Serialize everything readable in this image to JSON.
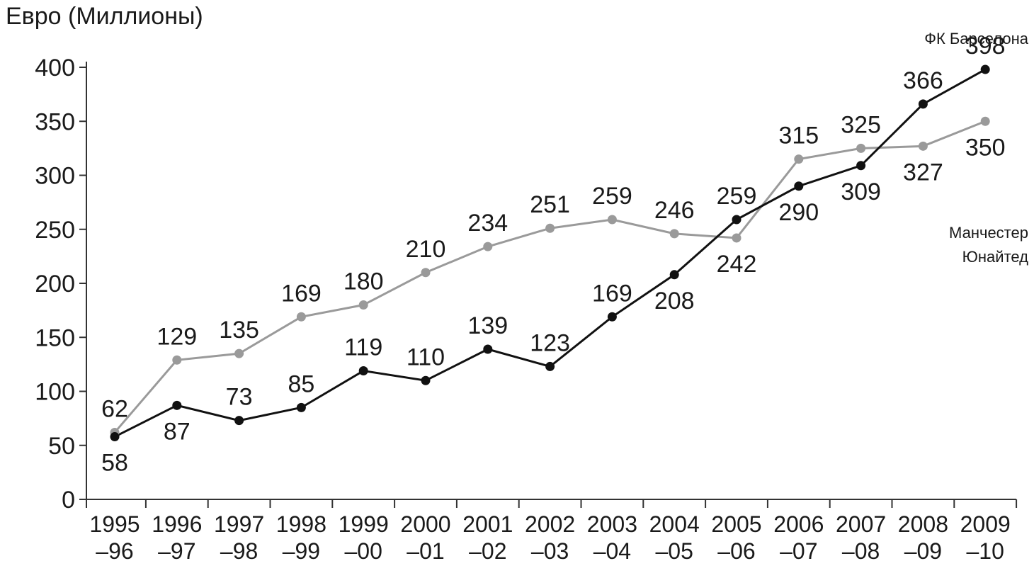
{
  "chart_data": {
    "type": "line",
    "ylabel": "Евро (Миллионы)",
    "xlabel": "",
    "ylim": [
      0,
      400
    ],
    "yticks": [
      "0",
      "50",
      "100",
      "150",
      "200",
      "250",
      "300",
      "350",
      "400"
    ],
    "categories": [
      [
        "1995",
        "–96"
      ],
      [
        "1996",
        "–97"
      ],
      [
        "1997",
        "–98"
      ],
      [
        "1998",
        "–99"
      ],
      [
        "1999",
        "–00"
      ],
      [
        "2000",
        "–01"
      ],
      [
        "2001",
        "–02"
      ],
      [
        "2002",
        "–03"
      ],
      [
        "2003",
        "–04"
      ],
      [
        "2004",
        "–05"
      ],
      [
        "2005",
        "–06"
      ],
      [
        "2006",
        "–07"
      ],
      [
        "2007",
        "–08"
      ],
      [
        "2008",
        "–09"
      ],
      [
        "2009",
        "–10"
      ]
    ],
    "series": [
      {
        "name": "ФК Барселона",
        "legend_lines": [
          "ФК Барселона"
        ],
        "color": "#111111",
        "values": [
          58,
          87,
          73,
          85,
          119,
          110,
          139,
          123,
          169,
          208,
          259,
          290,
          309,
          366,
          398
        ],
        "labels": [
          "58",
          "87",
          "73",
          "85",
          "119",
          "110",
          "139",
          "123",
          "169",
          "208",
          "259",
          "290",
          "309",
          "366",
          "398"
        ],
        "label_pos": [
          "below",
          "below",
          "above",
          "above",
          "above",
          "above",
          "above",
          "above",
          "above",
          "below",
          "above",
          "below",
          "below",
          "above",
          "above"
        ]
      },
      {
        "name": "Манчестер Юнайтед",
        "legend_lines": [
          "Манчестер",
          "Юнайтед"
        ],
        "color": "#9a9a9a",
        "values": [
          62,
          129,
          135,
          169,
          180,
          210,
          234,
          251,
          259,
          246,
          242,
          315,
          325,
          327,
          350
        ],
        "labels": [
          "62",
          "129",
          "135",
          "169",
          "180",
          "210",
          "234",
          "251",
          "259",
          "246",
          "242",
          "315",
          "325",
          "327",
          "350"
        ],
        "label_pos": [
          "above",
          "above",
          "above",
          "above",
          "above",
          "above",
          "above",
          "above",
          "above",
          "above",
          "below",
          "above",
          "above",
          "below",
          "below"
        ]
      }
    ]
  }
}
